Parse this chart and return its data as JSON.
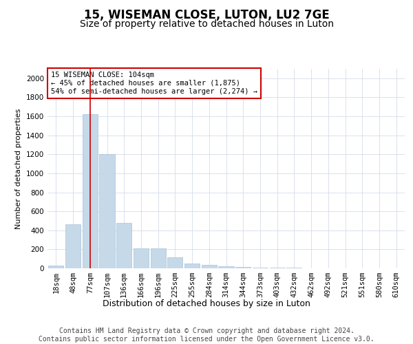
{
  "title": "15, WISEMAN CLOSE, LUTON, LU2 7GE",
  "subtitle": "Size of property relative to detached houses in Luton",
  "xlabel": "Distribution of detached houses by size in Luton",
  "ylabel": "Number of detached properties",
  "categories": [
    "18sqm",
    "48sqm",
    "77sqm",
    "107sqm",
    "136sqm",
    "166sqm",
    "196sqm",
    "225sqm",
    "255sqm",
    "284sqm",
    "314sqm",
    "344sqm",
    "373sqm",
    "403sqm",
    "432sqm",
    "462sqm",
    "492sqm",
    "521sqm",
    "551sqm",
    "580sqm",
    "610sqm"
  ],
  "values": [
    30,
    460,
    1620,
    1200,
    480,
    210,
    210,
    115,
    50,
    35,
    25,
    18,
    10,
    8,
    5,
    3,
    2,
    1,
    1,
    1,
    0
  ],
  "bar_color": "#c5d9e8",
  "bar_edge_color": "#a8c4d8",
  "highlight_bar_index": 2,
  "highlight_line_color": "#cc0000",
  "annotation_text": "15 WISEMAN CLOSE: 104sqm\n← 45% of detached houses are smaller (1,875)\n54% of semi-detached houses are larger (2,274) →",
  "annotation_box_color": "#ffffff",
  "annotation_box_edge_color": "#cc0000",
  "ylim": [
    0,
    2100
  ],
  "yticks": [
    0,
    200,
    400,
    600,
    800,
    1000,
    1200,
    1400,
    1600,
    1800,
    2000
  ],
  "footer_text": "Contains HM Land Registry data © Crown copyright and database right 2024.\nContains public sector information licensed under the Open Government Licence v3.0.",
  "background_color": "#ffffff",
  "grid_color": "#d4dce8",
  "title_fontsize": 12,
  "subtitle_fontsize": 10,
  "xlabel_fontsize": 9,
  "ylabel_fontsize": 8,
  "tick_fontsize": 7.5,
  "annotation_fontsize": 7.5,
  "footer_fontsize": 7
}
